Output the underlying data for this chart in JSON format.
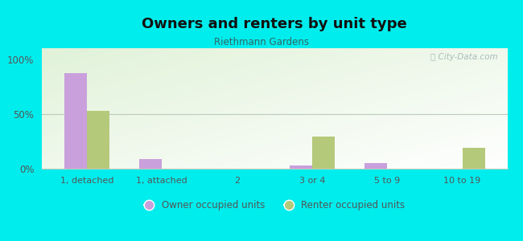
{
  "title": "Owners and renters by unit type",
  "subtitle": "Riethmann Gardens",
  "categories": [
    "1, detached",
    "1, attached",
    "2",
    "3 or 4",
    "5 to 9",
    "10 to 19"
  ],
  "owner_values": [
    87,
    9,
    0,
    3,
    5,
    0
  ],
  "renter_values": [
    53,
    0,
    0,
    29,
    0,
    19
  ],
  "owner_color": "#c9a0dc",
  "renter_color": "#b5c97a",
  "background_color": "#00eded",
  "ylabel_ticks": [
    "0%",
    "50%",
    "100%"
  ],
  "yticks": [
    0,
    50,
    100
  ],
  "legend_owner": "Owner occupied units",
  "legend_renter": "Renter occupied units",
  "bar_width": 0.3,
  "figsize": [
    6.5,
    3.0
  ],
  "dpi": 100,
  "subtitle_color": "#336666",
  "title_color": "#111111",
  "watermark_color": "#aabbbb",
  "tick_color": "#555555"
}
